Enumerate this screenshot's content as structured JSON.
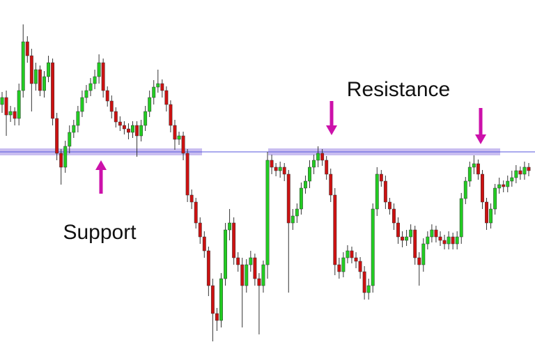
{
  "chart_data": {
    "type": "candlestick",
    "annotations": {
      "resistance": "Resistance",
      "support": "Support"
    },
    "ylim": [
      0,
      511
    ],
    "level": 293,
    "level_color": "#5555dd",
    "up_color": "#22cc22",
    "down_color": "#cc1111",
    "open": [
      361,
      371,
      346,
      351,
      341,
      381,
      451,
      431,
      391,
      411,
      381,
      401,
      421,
      341,
      291,
      271,
      301,
      321,
      331,
      351,
      371,
      381,
      391,
      401,
      421,
      381,
      366,
      351,
      336,
      331,
      326,
      321,
      331,
      316,
      331,
      351,
      371,
      386,
      391,
      381,
      361,
      331,
      311,
      316,
      291,
      231,
      221,
      191,
      171,
      151,
      101,
      61,
      51,
      111,
      181,
      191,
      141,
      131,
      101,
      131,
      141,
      111,
      101,
      131,
      281,
      271,
      266,
      271,
      261,
      191,
      201,
      211,
      241,
      251,
      271,
      281,
      291,
      281,
      261,
      231,
      131,
      121,
      141,
      151,
      141,
      136,
      121,
      91,
      101,
      211,
      261,
      251,
      221,
      211,
      191,
      171,
      166,
      171,
      181,
      141,
      131,
      161,
      171,
      181,
      171,
      166,
      161,
      171,
      161,
      171,
      226,
      251,
      271,
      276,
      261,
      221,
      191,
      211,
      241,
      246,
      243,
      251,
      256,
      266,
      261,
      271
    ],
    "high": [
      379,
      381,
      359,
      357,
      391,
      476,
      459,
      441,
      421,
      417,
      409,
      431,
      427,
      349,
      297,
      309,
      331,
      339,
      359,
      381,
      389,
      399,
      411,
      433,
      427,
      387,
      374,
      357,
      344,
      337,
      334,
      337,
      337,
      339,
      359,
      381,
      396,
      411,
      397,
      387,
      367,
      339,
      322,
      322,
      297,
      239,
      227,
      199,
      179,
      157,
      111,
      69,
      119,
      191,
      211,
      199,
      149,
      141,
      139,
      151,
      147,
      119,
      137,
      293,
      289,
      277,
      279,
      277,
      267,
      211,
      219,
      249,
      259,
      281,
      289,
      301,
      297,
      287,
      269,
      241,
      141,
      149,
      159,
      157,
      149,
      142,
      129,
      111,
      219,
      271,
      267,
      259,
      227,
      219,
      199,
      179,
      181,
      189,
      187,
      149,
      169,
      179,
      189,
      187,
      179,
      174,
      179,
      177,
      179,
      234,
      257,
      279,
      288,
      282,
      267,
      227,
      219,
      247,
      256,
      252,
      259,
      266,
      274,
      272,
      279,
      277
    ],
    "low": [
      349,
      316,
      336,
      331,
      331,
      371,
      421,
      351,
      381,
      373,
      371,
      393,
      331,
      281,
      246,
      263,
      291,
      313,
      321,
      343,
      363,
      373,
      383,
      391,
      371,
      358,
      341,
      328,
      323,
      318,
      311,
      313,
      286,
      308,
      323,
      343,
      361,
      378,
      371,
      351,
      321,
      296,
      303,
      281,
      221,
      211,
      183,
      161,
      141,
      86,
      21,
      36,
      41,
      101,
      166,
      131,
      121,
      41,
      91,
      121,
      101,
      31,
      91,
      111,
      261,
      258,
      256,
      251,
      91,
      181,
      191,
      203,
      233,
      241,
      261,
      271,
      273,
      253,
      221,
      116,
      111,
      113,
      133,
      133,
      126,
      111,
      81,
      81,
      91,
      201,
      243,
      211,
      203,
      181,
      161,
      156,
      158,
      161,
      131,
      101,
      121,
      153,
      163,
      163,
      158,
      153,
      153,
      153,
      153,
      161,
      218,
      243,
      261,
      253,
      211,
      181,
      183,
      203,
      233,
      235,
      235,
      243,
      248,
      253,
      253,
      258
    ],
    "close": [
      371,
      346,
      351,
      341,
      381,
      451,
      431,
      391,
      411,
      381,
      401,
      421,
      341,
      291,
      271,
      301,
      321,
      331,
      351,
      371,
      381,
      391,
      401,
      421,
      381,
      366,
      351,
      336,
      331,
      326,
      321,
      331,
      316,
      331,
      351,
      371,
      386,
      391,
      381,
      361,
      331,
      311,
      316,
      291,
      231,
      221,
      191,
      171,
      151,
      101,
      61,
      51,
      111,
      181,
      191,
      141,
      131,
      101,
      131,
      141,
      111,
      101,
      131,
      281,
      271,
      266,
      271,
      261,
      191,
      201,
      211,
      241,
      251,
      271,
      281,
      291,
      281,
      261,
      231,
      131,
      121,
      141,
      151,
      141,
      136,
      121,
      91,
      101,
      211,
      261,
      251,
      221,
      211,
      191,
      171,
      166,
      171,
      181,
      141,
      131,
      161,
      171,
      181,
      171,
      166,
      161,
      171,
      161,
      171,
      226,
      251,
      271,
      276,
      261,
      221,
      191,
      211,
      241,
      246,
      243,
      251,
      256,
      266,
      261,
      271,
      266
    ]
  }
}
